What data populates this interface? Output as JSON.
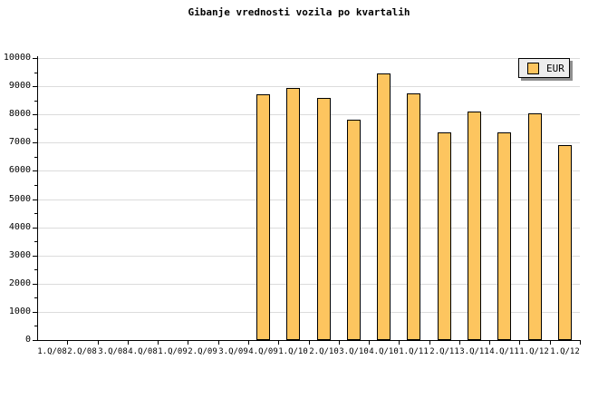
{
  "title": "Gibanje vrednosti vozila po kvartalih",
  "legend": {
    "label": "EUR",
    "position": "top-right"
  },
  "colors": {
    "bar_fill": "#FDC55F",
    "bar_border": "#000000",
    "gridline": "#DCDCDC",
    "axis": "#000000",
    "legend_bg": "#EDEDED",
    "legend_shadow": "#8F8F8F",
    "background": "#FFFFFF",
    "text": "#000000"
  },
  "chart_data": {
    "type": "bar",
    "title": "Gibanje vrednosti vozila po kvartalih",
    "xlabel": "",
    "ylabel": "",
    "categories": [
      "1.Q/08",
      "2.Q/08",
      "3.Q/08",
      "4.Q/08",
      "1.Q/09",
      "2.Q/09",
      "3.Q/09",
      "4.Q/09",
      "1.Q/10",
      "2.Q/10",
      "3.Q/10",
      "4.Q/10",
      "1.Q/11",
      "2.Q/11",
      "3.Q/11",
      "4.Q/11",
      "1.Q/12",
      "1.Q/12"
    ],
    "series": [
      {
        "name": "EUR",
        "values": [
          null,
          null,
          null,
          null,
          null,
          null,
          null,
          8700,
          8950,
          8600,
          7800,
          9450,
          8750,
          7350,
          8100,
          7350,
          8050,
          6900
        ]
      }
    ],
    "ylim": [
      0,
      10000
    ],
    "ytick_interval": 1000,
    "ytick_minor_interval": 500,
    "ytick_labels": [
      "0",
      "1000",
      "2000",
      "3000",
      "4000",
      "5000",
      "6000",
      "7000",
      "8000",
      "9000",
      "10000"
    ],
    "grid": true,
    "legend_position": "top-right"
  }
}
